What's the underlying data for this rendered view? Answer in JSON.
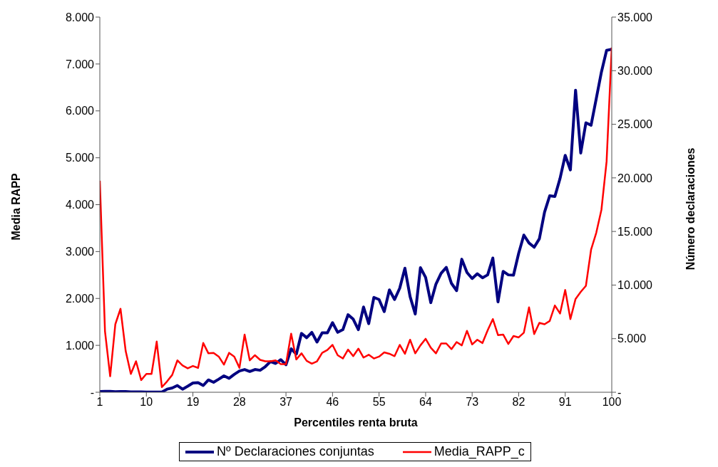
{
  "chart_data": {
    "type": "line",
    "xlabel": "Percentiles renta bruta",
    "ylabel": "Media RAPP",
    "y2label": "Número declaraciones",
    "x": [
      1,
      2,
      3,
      4,
      5,
      6,
      7,
      8,
      9,
      10,
      11,
      12,
      13,
      14,
      15,
      16,
      17,
      18,
      19,
      20,
      21,
      22,
      23,
      24,
      25,
      26,
      27,
      28,
      29,
      30,
      31,
      32,
      33,
      34,
      35,
      36,
      37,
      38,
      39,
      40,
      41,
      42,
      43,
      44,
      45,
      46,
      47,
      48,
      49,
      50,
      51,
      52,
      53,
      54,
      55,
      56,
      57,
      58,
      59,
      60,
      61,
      62,
      63,
      64,
      65,
      66,
      67,
      68,
      69,
      70,
      71,
      72,
      73,
      74,
      75,
      76,
      77,
      78,
      79,
      80,
      81,
      82,
      83,
      84,
      85,
      86,
      87,
      88,
      89,
      90,
      91,
      92,
      93,
      94,
      95,
      96,
      97,
      98,
      99,
      100
    ],
    "xlim": [
      1,
      100
    ],
    "xticks": [
      1,
      10,
      19,
      28,
      37,
      46,
      55,
      64,
      73,
      82,
      91,
      100
    ],
    "ylim": [
      0,
      8000
    ],
    "yticks": [
      {
        "value": 0,
        "label": "-"
      },
      {
        "value": 1000,
        "label": "1.000"
      },
      {
        "value": 2000,
        "label": "2.000"
      },
      {
        "value": 3000,
        "label": "3.000"
      },
      {
        "value": 4000,
        "label": "4.000"
      },
      {
        "value": 5000,
        "label": "5.000"
      },
      {
        "value": 6000,
        "label": "6.000"
      },
      {
        "value": 7000,
        "label": "7.000"
      },
      {
        "value": 8000,
        "label": "8.000"
      }
    ],
    "y2lim": [
      0,
      35000
    ],
    "y2ticks": [
      {
        "value": 0,
        "label": "-"
      },
      {
        "value": 5000,
        "label": "5.000"
      },
      {
        "value": 10000,
        "label": "10.000"
      },
      {
        "value": 15000,
        "label": "15.000"
      },
      {
        "value": 20000,
        "label": "20.000"
      },
      {
        "value": 25000,
        "label": "25.000"
      },
      {
        "value": 30000,
        "label": "30.000"
      },
      {
        "value": 35000,
        "label": "35.000"
      }
    ],
    "legend": "bottom",
    "marker": "none",
    "line_style": "solid",
    "series": [
      {
        "name": "Nº Declaraciones conjuntas",
        "color": "#000080",
        "axis": "y2",
        "values": [
          60,
          80,
          90,
          50,
          70,
          60,
          40,
          30,
          30,
          20,
          20,
          20,
          20,
          290,
          400,
          630,
          290,
          560,
          860,
          900,
          630,
          1150,
          930,
          1220,
          1530,
          1300,
          1670,
          1980,
          2120,
          1940,
          2120,
          2050,
          2390,
          2860,
          2690,
          3040,
          2560,
          4050,
          3560,
          5490,
          5090,
          5590,
          4680,
          5540,
          5540,
          6490,
          5590,
          5840,
          7230,
          6820,
          5840,
          7950,
          6400,
          8850,
          8650,
          7520,
          9550,
          8650,
          9710,
          11570,
          8920,
          7300,
          11620,
          10720,
          8360,
          10090,
          11100,
          11650,
          10160,
          9480,
          12410,
          11170,
          10610,
          11060,
          10680,
          10950,
          12520,
          8430,
          11280,
          10950,
          10920,
          12970,
          14660,
          13920,
          13530,
          14320,
          16800,
          18330,
          18260,
          19950,
          22100,
          20740,
          28180,
          22320,
          25140,
          24910,
          27390,
          29870,
          31900,
          32000
        ]
      },
      {
        "name": "Media_RAPP_c",
        "color": "#ff0000",
        "axis": "y",
        "values": [
          4510,
          1300,
          340,
          1450,
          1780,
          880,
          390,
          660,
          260,
          390,
          390,
          1080,
          110,
          230,
          370,
          680,
          570,
          510,
          560,
          520,
          1050,
          830,
          840,
          760,
          590,
          840,
          760,
          520,
          1230,
          680,
          790,
          690,
          660,
          660,
          680,
          600,
          600,
          1250,
          700,
          830,
          670,
          610,
          660,
          840,
          900,
          1010,
          790,
          720,
          910,
          770,
          930,
          740,
          800,
          720,
          760,
          850,
          820,
          770,
          1010,
          820,
          1120,
          830,
          1000,
          1140,
          950,
          830,
          1040,
          1040,
          920,
          1070,
          1000,
          1310,
          1020,
          1120,
          1050,
          1320,
          1560,
          1220,
          1230,
          1030,
          1200,
          1170,
          1270,
          1810,
          1240,
          1480,
          1450,
          1520,
          1850,
          1680,
          2180,
          1560,
          1990,
          2140,
          2270,
          3040,
          3400,
          3890,
          4920,
          7350
        ]
      }
    ]
  }
}
